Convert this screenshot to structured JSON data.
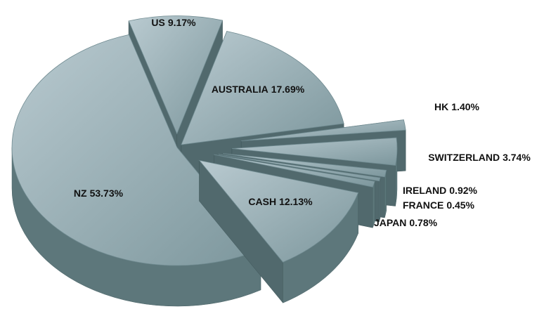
{
  "chart_data": {
    "type": "pie",
    "categories": [
      "US",
      "AUSTRALIA",
      "HK",
      "SWITZERLAND",
      "IRELAND",
      "FRANCE",
      "JAPAN",
      "CASH",
      "NZ"
    ],
    "values": [
      9.17,
      17.69,
      1.4,
      3.74,
      0.92,
      0.45,
      0.78,
      12.13,
      53.73
    ],
    "value_labels": [
      "9.17%",
      "17.69%",
      "1.40%",
      "3.74%",
      "0.92%",
      "0.45%",
      "0.78%",
      "12.13%",
      "53.73%"
    ],
    "color": "#9fb3ba"
  }
}
